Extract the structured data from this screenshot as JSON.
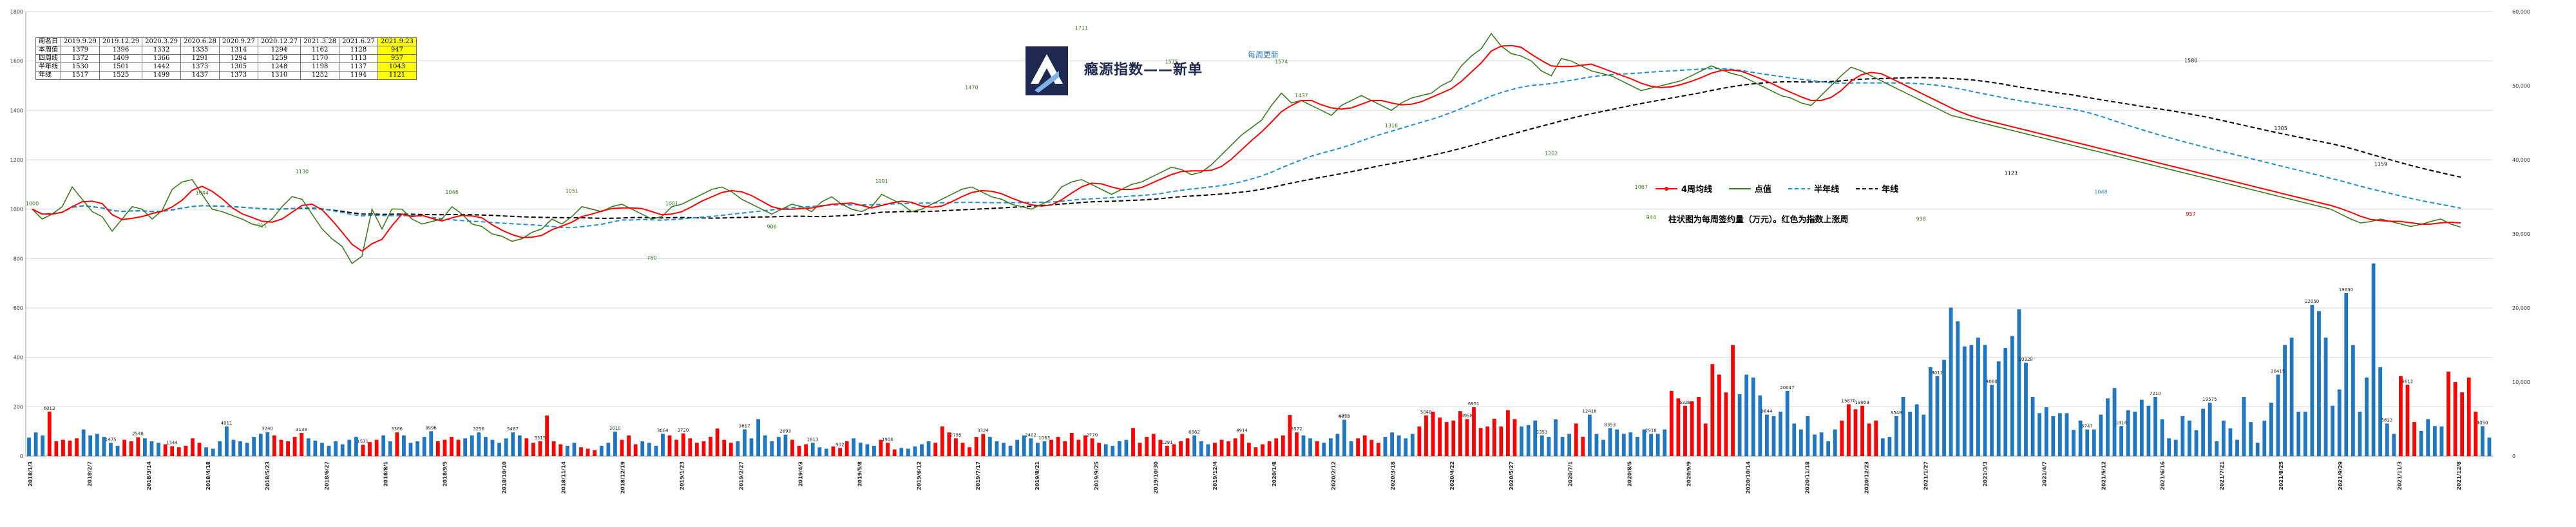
{
  "chart_data": {
    "type": "line",
    "title": "",
    "subtitle": "每周更新",
    "brand_title": "瘾源指数——新单",
    "note": "柱状图为每周签约量（万元）。红色为指数上涨周",
    "legend": [
      {
        "name": "4周均线",
        "color": "#ff0000",
        "style": "solid-marker"
      },
      {
        "name": "点值",
        "color": "#3a7d1e",
        "style": "solid"
      },
      {
        "name": "半年线",
        "color": "#1f8fd6",
        "style": "dashed"
      },
      {
        "name": "年线",
        "color": "#000000",
        "style": "dashed"
      }
    ],
    "left_axis": {
      "ticks": [
        "0",
        "200",
        "400",
        "600",
        "800",
        "1000",
        "1200",
        "1400",
        "1600",
        "1800"
      ],
      "range": [
        0,
        1800
      ]
    },
    "right_axis": {
      "ticks": [
        "0",
        "10,000",
        "20,000",
        "30,000",
        "40,000",
        "50,000",
        "60,000"
      ],
      "range": [
        0,
        60000
      ]
    },
    "x_labels": [
      "2018/1/3",
      "2018/2/7",
      "2018/3/14",
      "2018/4/18",
      "2018/5/23",
      "2018/6/27",
      "2018/8/1",
      "2018/9/5",
      "2018/10/10",
      "2018/11/14",
      "2018/12/19",
      "2019/1/23",
      "2019/2/27",
      "2019/4/3",
      "2019/5/8",
      "2019/6/12",
      "2019/7/17",
      "2019/8/21",
      "2019/9/25",
      "2019/10/30",
      "2019/12/4",
      "2020/1/8",
      "2020/2/12",
      "2020/3/18",
      "2020/4/22",
      "2020/5/27",
      "2020/7/1",
      "2020/8/5",
      "2020/9/9",
      "2020/10/14",
      "2020/11/18",
      "2020/12/23",
      "2021/1/27",
      "2021/3/3",
      "2021/4/7",
      "2021/5/12",
      "2021/6/16",
      "2021/7/21",
      "2021/8/25",
      "2021/9/29",
      "2021/11/3",
      "2021/12/8"
    ],
    "series": [
      {
        "name": "点值",
        "values": [
          1000,
          960,
          980,
          1010,
          1090,
          1040,
          990,
          970,
          911,
          960,
          1010,
          1000,
          960,
          995,
          1080,
          1110,
          1120,
          1060,
          1000,
          990,
          975,
          960,
          940,
          930,
          960,
          1010,
          1051,
          1040,
          980,
          920,
          880,
          850,
          780,
          810,
          1000,
          920,
          1001,
          1000,
          960,
          940,
          950,
          960,
          1010,
          980,
          940,
          930,
          900,
          890,
          870,
          880,
          906,
          920,
          960,
          940,
          970,
          1010,
          1000,
          990,
          1010,
          1020,
          1000,
          980,
          960,
          970,
          1010,
          1020,
          1040,
          1060,
          1080,
          1090,
          1070,
          1040,
          1020,
          1000,
          980,
          1000,
          1020,
          1010,
          990,
          1030,
          1050,
          1020,
          1000,
          990,
          1010,
          1060,
          1040,
          1020,
          990,
          1000,
          1020,
          1040,
          1060,
          1080,
          1090,
          1070,
          1050,
          1040,
          1020,
          1010,
          1000,
          1020,
          1040,
          1090,
          1110,
          1120,
          1100,
          1080,
          1060,
          1080,
          1100,
          1110,
          1130,
          1150,
          1170,
          1160,
          1140,
          1150,
          1180,
          1220,
          1260,
          1300,
          1330,
          1360,
          1420,
          1470,
          1430,
          1440,
          1420,
          1400,
          1380,
          1420,
          1440,
          1460,
          1440,
          1420,
          1400,
          1430,
          1450,
          1460,
          1470,
          1500,
          1520,
          1580,
          1620,
          1650,
          1711,
          1660,
          1630,
          1620,
          1600,
          1560,
          1540,
          1610,
          1600,
          1580,
          1560,
          1550,
          1540,
          1520,
          1500,
          1480,
          1490,
          1500,
          1510,
          1520,
          1540,
          1560,
          1580,
          1565,
          1550,
          1540,
          1520,
          1500,
          1480,
          1460,
          1450,
          1430,
          1420,
          1460,
          1500,
          1540,
          1575,
          1560,
          1540,
          1520,
          1500,
          1480,
          1460,
          1440,
          1420,
          1400,
          1380,
          1370,
          1360,
          1350,
          1340,
          1330,
          1320,
          1310,
          1300,
          1290,
          1280,
          1270,
          1260,
          1250,
          1240,
          1230,
          1220,
          1210,
          1200,
          1190,
          1180,
          1170,
          1160,
          1150,
          1140,
          1130,
          1120,
          1110,
          1100,
          1090,
          1080,
          1070,
          1060,
          1050,
          1040,
          1030,
          1020,
          1010,
          1000,
          980,
          960,
          944,
          950,
          960,
          950,
          940,
          930,
          938,
          950,
          960,
          940,
          927
        ]
      },
      {
        "name": "4周均线",
        "values": []
      },
      {
        "name": "半年线",
        "values": []
      },
      {
        "name": "年线",
        "values": []
      }
    ],
    "line_labels": [
      {
        "text": "1000",
        "color": "#3a7d1e"
      },
      {
        "text": "1044",
        "color": "#3a7d1e"
      },
      {
        "text": "911",
        "color": "#3a7d1e"
      },
      {
        "text": "1130",
        "color": "#3a7d1e"
      },
      {
        "text": "1046",
        "color": "#3a7d1e"
      },
      {
        "text": "1051",
        "color": "#3a7d1e"
      },
      {
        "text": "780",
        "color": "#3a7d1e"
      },
      {
        "text": "1001",
        "color": "#3a7d1e"
      },
      {
        "text": "906",
        "color": "#3a7d1e"
      },
      {
        "text": "1091",
        "color": "#3a7d1e"
      },
      {
        "text": "1470",
        "color": "#3a7d1e"
      },
      {
        "text": "1711",
        "color": "#3a7d1e"
      },
      {
        "text": "1575",
        "color": "#3a7d1e"
      },
      {
        "text": "1574",
        "color": "#3a7d1e"
      },
      {
        "text": "1437",
        "color": "#3a7d1e"
      },
      {
        "text": "1316",
        "color": "#3a7d1e"
      },
      {
        "text": "1202",
        "color": "#3a7d1e"
      },
      {
        "text": "1067",
        "color": "#3a7d1e"
      },
      {
        "text": "944",
        "color": "#3a7d1e"
      },
      {
        "text": "927",
        "color": "#3a7d1e"
      },
      {
        "text": "938",
        "color": "#3a7d1e"
      },
      {
        "text": "1123",
        "color": "#000000"
      },
      {
        "text": "1048",
        "color": "#1f8fd6"
      },
      {
        "text": "957",
        "color": "#ff0000"
      },
      {
        "text": "1580",
        "color": "#000000"
      },
      {
        "text": "1305",
        "color": "#000000"
      },
      {
        "text": "1159",
        "color": "#000000"
      }
    ],
    "bars": {
      "up_color": "#ff0000",
      "down_color": "#1f77c4",
      "values": [
        2500,
        3200,
        2800,
        6013,
        2000,
        2200,
        2100,
        2400,
        3600,
        2800,
        3000,
        2600,
        1800,
        1400,
        2200,
        2000,
        2548,
        2400,
        2000,
        1800,
        1600,
        1344,
        1200,
        1400,
        2400,
        1800,
        1200,
        1000,
        2000,
        4011,
        2200,
        2000,
        1800,
        2600,
        3000,
        3240,
        2800,
        2200,
        2000,
        2600,
        3138,
        2400,
        2100,
        1800,
        1400,
        2000,
        1600,
        2200,
        2600,
        1532,
        1900,
        2200,
        2800,
        2000,
        3200,
        2800,
        1800,
        2000,
        2600,
        3366,
        2000,
        2200,
        2600,
        2200,
        2400,
        2800,
        3196,
        2600,
        2200,
        1800,
        2400,
        3200,
        2800,
        2400,
        1800,
        2000,
        5487,
        2000,
        1600,
        1400,
        1800,
        1200,
        1000,
        800,
        1400,
        1800,
        3315,
        2200,
        2800,
        1600,
        2000,
        1800,
        1400,
        3010,
        2800,
        2200,
        3064,
        2400,
        1800,
        2000,
        2600,
        3720,
        2200,
        1800,
        2000,
        3617,
        2400,
        5000,
        2800,
        2000,
        2600,
        2893,
        2200,
        1400,
        1600,
        1800,
        1200,
        1000,
        1300,
        1100,
        2000,
        2400,
        1813,
        1600,
        1400,
        2200,
        1800,
        902,
        1100,
        1000,
        1300,
        1600,
        2000,
        1800,
        4000,
        3200,
        2400,
        1800,
        1200,
        2600,
        3000,
        2600,
        2000,
        1800,
        1400,
        2200,
        2800,
        2402,
        1800,
        2000,
        2200,
        2600,
        2000,
        3144,
        2200,
        2800,
        2400,
        1800,
        1600,
        1400,
        2000,
        2200,
        3800,
        1800,
        2600,
        3000,
        2200,
        1400,
        1600,
        2000,
        2400,
        2800,
        2000,
        1600,
        1800,
        2204,
        2000,
        2400,
        3000,
        1800,
        1200,
        1600,
        2000,
        2400,
        2800,
        5552,
        3200,
        2800,
        2400,
        2000,
        1800,
        2400,
        3000,
        4914,
        2000,
        2400,
        2800,
        2200,
        1800,
        2600,
        3200,
        2800,
        2400,
        3000,
        4000,
        5500,
        6000,
        5200,
        4600,
        4800,
        6073,
        5000,
        6600,
        3800,
        4000,
        5048,
        4000,
        6200,
        5000,
        4000,
        4200,
        4800,
        2800,
        2600,
        4958,
        2600,
        3000,
        4400,
        2600,
        5600,
        3000,
        2200,
        3800,
        3600,
        3000,
        3200,
        2600,
        3600,
        3000,
        3000,
        3600,
        8800,
        7800,
        6800,
        7400,
        8000,
        4400,
        12418,
        11000,
        8600,
        15000,
        8353,
        11000,
        10600,
        8200,
        5600,
        5400,
        6000,
        8800,
        4400,
        3600,
        5400,
        2918,
        3200,
        2000,
        3600,
        4800,
        7000,
        6328,
        6800,
        4400,
        4800,
        2400,
        2600,
        5400,
        8000,
        6000,
        7000,
        5600,
        12000,
        10800,
        13000,
        20047,
        18200,
        14800,
        15000,
        16000,
        15000,
        9600,
        12800,
        14600,
        16200,
        19809,
        12600,
        8000,
        5800,
        6600,
        5400,
        5800,
        5800,
        3548,
        4800,
        3600,
        3600,
        5600,
        7800,
        9200,
        4060,
        6200,
        6000,
        7600,
        6800,
        8000,
        4972,
        2400,
        2200,
        5400,
        4800,
        3500,
        6400,
        7200,
        2000,
        4800,
        3747,
        2200,
        8000,
        4600,
        1814,
        4800,
        7210,
        11000,
        15000,
        16000,
        6000,
        6000,
        20415,
        19575,
        16000,
        6800,
        9000,
        22000,
        15000,
        6000,
        10600,
        26000,
        12000,
        4400,
        3000,
        10800,
        9630,
        4600,
        3400,
        5000,
        4058,
        4000,
        11410,
        10000,
        8612,
        10600,
        6000,
        4050,
        2500
      ]
    },
    "bar_labels": [
      "6013",
      "1475",
      "2548",
      "1344",
      "4011",
      "3240",
      "3138",
      "1531",
      "3366",
      "3996",
      "3256",
      "5487",
      "3315",
      "3010",
      "3064",
      "3720",
      "3617",
      "2893",
      "1813",
      "902",
      "1906",
      "2795",
      "3324",
      "2402",
      "1063",
      "2770",
      "1291",
      "6862",
      "4914",
      "3572",
      "6073",
      "4758",
      "5048",
      "4958",
      "6951",
      "3353",
      "12418",
      "8353",
      "2918",
      "6328",
      "3844",
      "20047",
      "15870",
      "19809",
      "3548",
      "8011",
      "4060",
      "10328",
      "3747",
      "1814",
      "7210",
      "19575",
      "20415",
      "22050",
      "19630",
      "5622",
      "8612",
      "4050"
    ],
    "table": {
      "header": [
        "周名日",
        "2019.9.29",
        "2019.12.29",
        "2020.3.29",
        "2020.6.28",
        "2020.9.27",
        "2020.12.27",
        "2021.3.28",
        "2021.6.27",
        "2021.9.23"
      ],
      "rows": [
        [
          "本周值",
          "1379",
          "1396",
          "1332",
          "1335",
          "1314",
          "1294",
          "1162",
          "1128",
          "947"
        ],
        [
          "四周线",
          "1372",
          "1409",
          "1366",
          "1291",
          "1294",
          "1259",
          "1170",
          "1113",
          "957"
        ],
        [
          "半年线",
          "1530",
          "1501",
          "1442",
          "1373",
          "1305",
          "1248",
          "1198",
          "1137",
          "1043"
        ],
        [
          "年线",
          "1517",
          "1525",
          "1499",
          "1437",
          "1373",
          "1310",
          "1252",
          "1194",
          "1121"
        ]
      ]
    }
  }
}
